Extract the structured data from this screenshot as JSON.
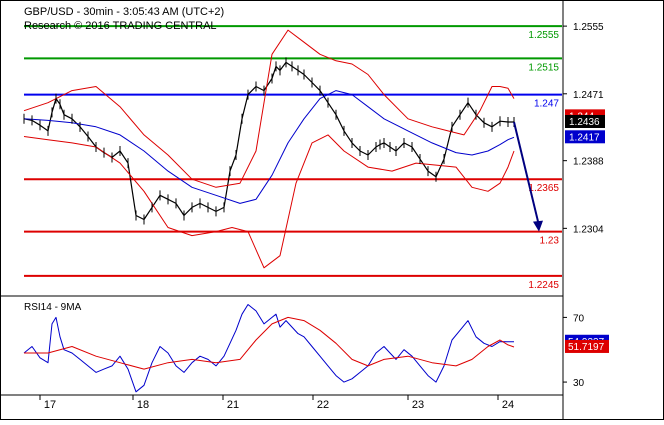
{
  "header": {
    "title": "GBP/USD - 30min - 3:05:43 AM (UTC+2)",
    "research": "Research © 2016 TRADING CENTRAL"
  },
  "rsi_title": "RSI14 - 9MA",
  "colors": {
    "price": "#000000",
    "bollinger": "#dd0000",
    "ma": "#0000cc",
    "resistance": "#009900",
    "pivot": "#0000ee",
    "support": "#dd0000",
    "forecast_arrow": "#000080",
    "rsi": "#0000cc",
    "rsi_ma": "#dd0000"
  },
  "chart_data": [
    {
      "type": "line",
      "panel": "price",
      "x_tick_labels": [
        "17",
        "18",
        "21",
        "22",
        "23",
        "24"
      ],
      "y_tick_labels": [
        "1.2555",
        "1.2471",
        "1.2388",
        "1.2304"
      ],
      "ylim": [
        1.2225,
        1.2575
      ],
      "grid": false,
      "levels": [
        {
          "value": 1.2555,
          "label": "1.2555",
          "kind": "resistance"
        },
        {
          "value": 1.2515,
          "label": "1.2515",
          "kind": "resistance"
        },
        {
          "value": 1.247,
          "label": "1.247",
          "kind": "pivot"
        },
        {
          "value": 1.2365,
          "label": "1.2365",
          "kind": "support"
        },
        {
          "value": 1.23,
          "label": "1.23",
          "kind": "support"
        },
        {
          "value": 1.2245,
          "label": "1.2245",
          "kind": "support"
        }
      ],
      "price_markers": [
        {
          "label": "1.244",
          "value": 1.2443,
          "kind": "bollinger"
        },
        {
          "label": "1.2436",
          "value": 1.2436,
          "kind": "last"
        },
        {
          "label": "1.2417",
          "value": 1.2417,
          "kind": "ma"
        }
      ],
      "series": [
        {
          "role": "price",
          "x": [
            0,
            8,
            16,
            24,
            28,
            32,
            36,
            40,
            48,
            56,
            64,
            72,
            80,
            88,
            96,
            104,
            112,
            120,
            128,
            136,
            144,
            152,
            160,
            168,
            176,
            184,
            192,
            200,
            206,
            212,
            218,
            224,
            232,
            240,
            248,
            252,
            256,
            262,
            268,
            274,
            280,
            288,
            296,
            304,
            312,
            320,
            328,
            336,
            344,
            352,
            356,
            360,
            366,
            372,
            380,
            388,
            396,
            404,
            412,
            420,
            428,
            436,
            444,
            452,
            460,
            468,
            476,
            484,
            490
          ],
          "values": [
            1.244,
            1.2438,
            1.2432,
            1.2425,
            1.2448,
            1.2465,
            1.2458,
            1.2445,
            1.244,
            1.243,
            1.2418,
            1.2405,
            1.2398,
            1.2392,
            1.24,
            1.2385,
            1.232,
            1.2315,
            1.233,
            1.2345,
            1.234,
            1.2335,
            1.232,
            1.233,
            1.2335,
            1.233,
            1.2325,
            1.233,
            1.2375,
            1.2395,
            1.244,
            1.247,
            1.248,
            1.2475,
            1.249,
            1.2505,
            1.25,
            1.251,
            1.2505,
            1.25,
            1.2495,
            1.2485,
            1.2475,
            1.246,
            1.2445,
            1.2425,
            1.241,
            1.24,
            1.2395,
            1.2405,
            1.2408,
            1.241,
            1.2405,
            1.24,
            1.241,
            1.2405,
            1.239,
            1.2375,
            1.2368,
            1.239,
            1.243,
            1.2445,
            1.246,
            1.2445,
            1.2435,
            1.243,
            1.2437,
            1.2436,
            1.2436
          ]
        },
        {
          "role": "bollinger_upper",
          "x": [
            0,
            24,
            48,
            72,
            96,
            120,
            144,
            168,
            192,
            216,
            232,
            248,
            264,
            280,
            296,
            312,
            328,
            344,
            360,
            384,
            408,
            424,
            440,
            456,
            468,
            476,
            484,
            490
          ],
          "values": [
            1.245,
            1.246,
            1.2475,
            1.248,
            1.2455,
            1.242,
            1.2395,
            1.2365,
            1.2355,
            1.236,
            1.24,
            1.252,
            1.255,
            1.2535,
            1.252,
            1.2512,
            1.2508,
            1.2495,
            1.247,
            1.244,
            1.243,
            1.2425,
            1.242,
            1.245,
            1.248,
            1.248,
            1.2478,
            1.2465
          ]
        },
        {
          "role": "bollinger_lower",
          "x": [
            0,
            24,
            48,
            72,
            96,
            120,
            144,
            168,
            192,
            208,
            224,
            240,
            256,
            272,
            288,
            304,
            320,
            344,
            368,
            392,
            416,
            432,
            448,
            464,
            476,
            484,
            490
          ],
          "values": [
            1.2418,
            1.2414,
            1.241,
            1.2405,
            1.2385,
            1.235,
            1.2305,
            1.2295,
            1.23,
            1.2305,
            1.23,
            1.2255,
            1.227,
            1.236,
            1.241,
            1.242,
            1.24,
            1.238,
            1.2375,
            1.2385,
            1.2382,
            1.238,
            1.2355,
            1.235,
            1.236,
            1.238,
            1.24
          ]
        },
        {
          "role": "moving_average",
          "x": [
            0,
            24,
            48,
            72,
            96,
            120,
            144,
            168,
            192,
            216,
            232,
            248,
            264,
            280,
            296,
            312,
            328,
            344,
            360,
            384,
            408,
            432,
            448,
            464,
            476,
            484,
            490
          ],
          "values": [
            1.244,
            1.2438,
            1.2435,
            1.243,
            1.242,
            1.24,
            1.2375,
            1.2355,
            1.2345,
            1.2335,
            1.234,
            1.237,
            1.241,
            1.244,
            1.2465,
            1.2475,
            1.247,
            1.2455,
            1.244,
            1.2425,
            1.241,
            1.2398,
            1.2395,
            1.24,
            1.2408,
            1.2414,
            1.2417
          ]
        }
      ],
      "forecast_arrow": {
        "from": {
          "x": 490,
          "value": 1.2436
        },
        "to": {
          "x": 515,
          "value": 1.23
        }
      }
    },
    {
      "type": "line",
      "panel": "rsi",
      "y_tick_labels": [
        "70",
        "30"
      ],
      "ylim": [
        22,
        82
      ],
      "markers": [
        {
          "label": "54.9337",
          "value": 54.9337,
          "kind": "rsi"
        },
        {
          "label": "51.7197",
          "value": 51.7197,
          "kind": "rsi_ma"
        }
      ],
      "series": [
        {
          "role": "rsi",
          "x": [
            0,
            8,
            16,
            24,
            28,
            32,
            36,
            40,
            48,
            56,
            64,
            72,
            80,
            88,
            96,
            104,
            112,
            120,
            128,
            136,
            144,
            152,
            160,
            168,
            176,
            184,
            192,
            200,
            206,
            212,
            218,
            224,
            232,
            240,
            248,
            252,
            256,
            262,
            268,
            274,
            280,
            288,
            296,
            304,
            312,
            320,
            328,
            336,
            344,
            352,
            356,
            360,
            366,
            372,
            380,
            388,
            396,
            404,
            412,
            420,
            428,
            436,
            444,
            452,
            460,
            468,
            476,
            484,
            490
          ],
          "values": [
            48,
            52,
            45,
            42,
            66,
            70,
            58,
            50,
            48,
            44,
            40,
            36,
            38,
            40,
            46,
            38,
            24,
            28,
            42,
            52,
            48,
            40,
            36,
            42,
            46,
            44,
            40,
            46,
            54,
            62,
            72,
            78,
            74,
            66,
            70,
            72,
            64,
            68,
            64,
            60,
            58,
            52,
            46,
            40,
            34,
            30,
            32,
            36,
            40,
            48,
            50,
            52,
            48,
            44,
            50,
            46,
            40,
            34,
            30,
            40,
            56,
            62,
            68,
            58,
            54,
            52,
            55,
            54.9337,
            54.9337
          ]
        },
        {
          "role": "rsi_ma",
          "x": [
            0,
            24,
            48,
            72,
            96,
            120,
            144,
            168,
            192,
            216,
            232,
            248,
            264,
            280,
            296,
            312,
            328,
            344,
            360,
            384,
            408,
            432,
            448,
            464,
            476,
            484,
            490
          ],
          "values": [
            48,
            48,
            52,
            46,
            42,
            38,
            42,
            44,
            42,
            44,
            56,
            66,
            70,
            68,
            62,
            54,
            44,
            40,
            44,
            46,
            42,
            40,
            44,
            52,
            56,
            53,
            51.7197
          ]
        }
      ]
    }
  ]
}
